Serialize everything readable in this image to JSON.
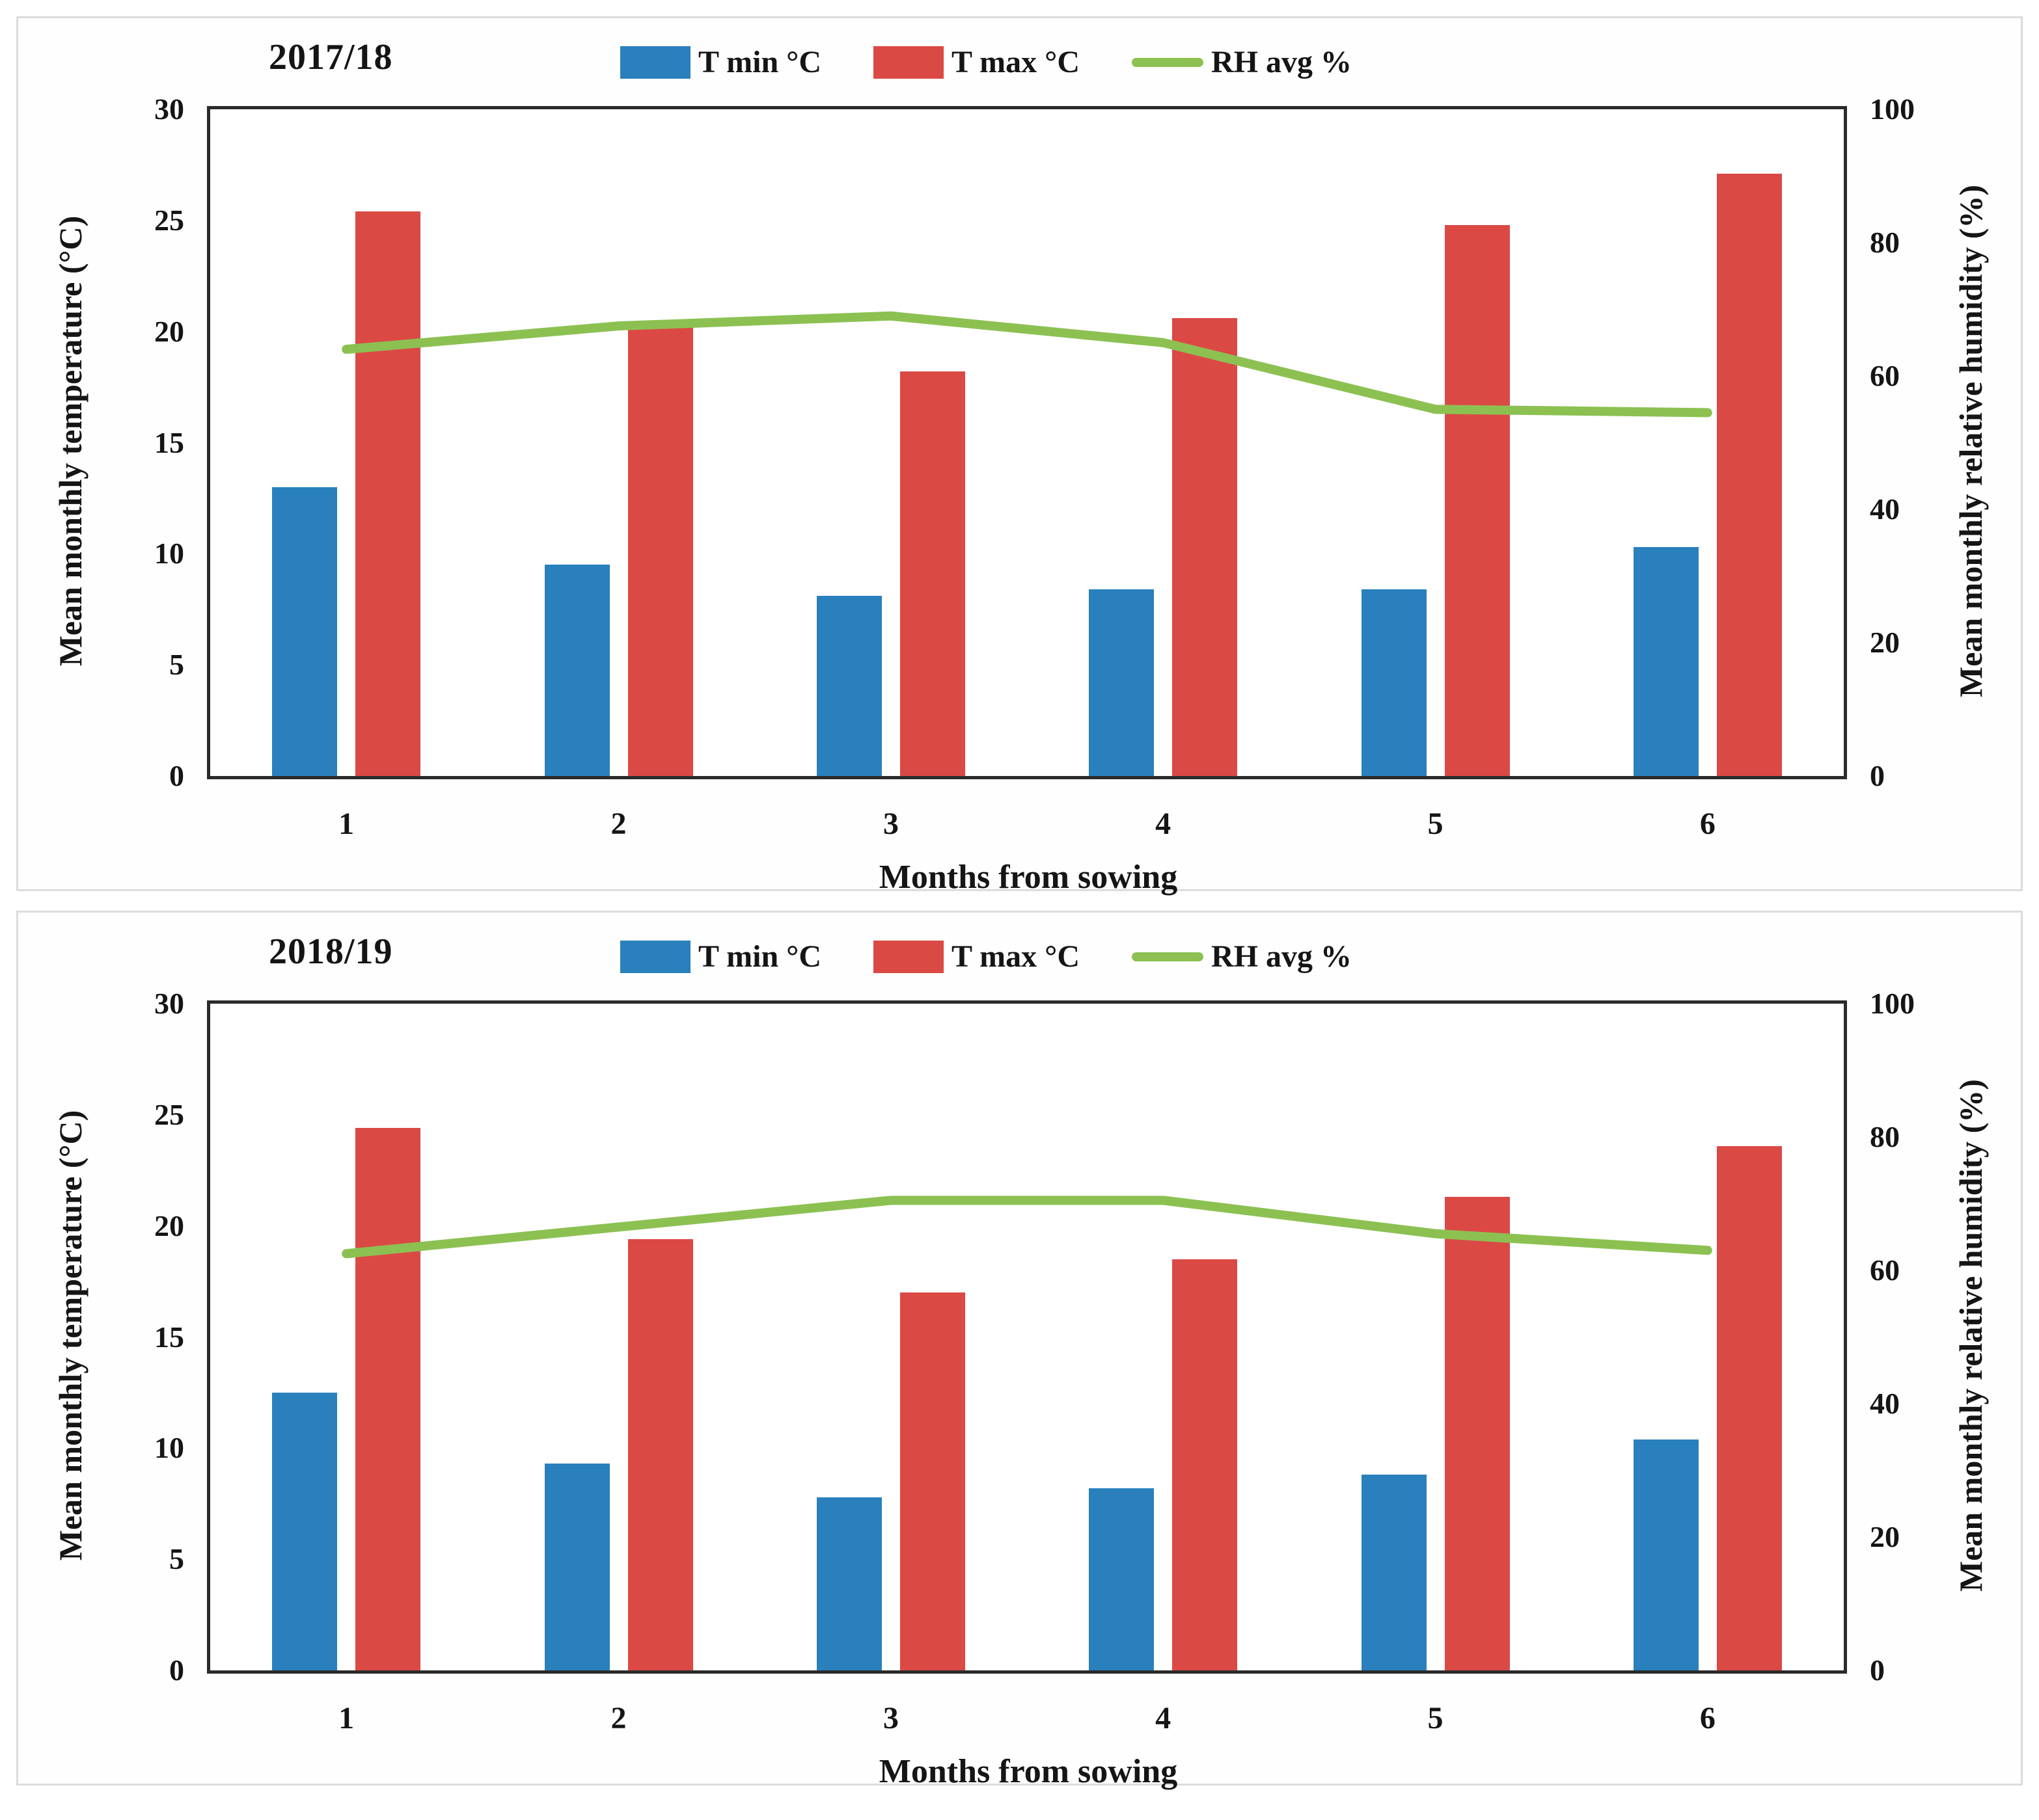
{
  "chart_data": [
    {
      "type": "bar",
      "title": "2017/18",
      "categories": [
        "1",
        "2",
        "3",
        "4",
        "5",
        "6"
      ],
      "series": [
        {
          "name": "T min °C",
          "type": "bar",
          "axis": "left",
          "color": "#2980BC",
          "values": [
            13.0,
            9.5,
            8.1,
            8.4,
            8.4,
            10.3
          ]
        },
        {
          "name": "T max °C",
          "type": "bar",
          "axis": "left",
          "color": "#DB4945",
          "values": [
            25.4,
            20.2,
            18.2,
            20.6,
            24.8,
            27.1
          ]
        },
        {
          "name": "RH avg %",
          "type": "line",
          "axis": "right",
          "color": "#8CC152",
          "values": [
            64.0,
            67.5,
            69.0,
            65.0,
            55.0,
            54.5
          ]
        }
      ],
      "xlabel": "Months from sowing",
      "ylabel_left": "Mean monthly temperature (°C)",
      "ylabel_right": "Mean monthly relative humidity (%)",
      "ylim_left": [
        0,
        30
      ],
      "ylim_right": [
        0,
        100
      ],
      "yticks_left": [
        0,
        5,
        10,
        15,
        20,
        25,
        30
      ],
      "yticks_right": [
        0,
        20,
        40,
        60,
        80,
        100
      ],
      "grid": false,
      "legend_position": "top"
    },
    {
      "type": "bar",
      "title": "2018/19",
      "categories": [
        "1",
        "2",
        "3",
        "4",
        "5",
        "6"
      ],
      "series": [
        {
          "name": "T min °C",
          "type": "bar",
          "axis": "left",
          "color": "#2980BC",
          "values": [
            12.5,
            9.3,
            7.8,
            8.2,
            8.8,
            10.4
          ]
        },
        {
          "name": "T max °C",
          "type": "bar",
          "axis": "left",
          "color": "#DB4945",
          "values": [
            24.4,
            19.4,
            17.0,
            18.5,
            21.3,
            23.6
          ]
        },
        {
          "name": "RH avg %",
          "type": "line",
          "axis": "right",
          "color": "#8CC152",
          "values": [
            62.5,
            66.5,
            70.5,
            70.5,
            65.5,
            63.0
          ]
        }
      ],
      "xlabel": "Months from sowing",
      "ylabel_left": "Mean monthly temperature (°C)",
      "ylabel_right": "Mean monthly relative humidity (%)",
      "ylim_left": [
        0,
        30
      ],
      "ylim_right": [
        0,
        100
      ],
      "yticks_left": [
        0,
        5,
        10,
        15,
        20,
        25,
        30
      ],
      "yticks_right": [
        0,
        20,
        40,
        60,
        80,
        100
      ],
      "grid": false,
      "legend_position": "top"
    }
  ]
}
